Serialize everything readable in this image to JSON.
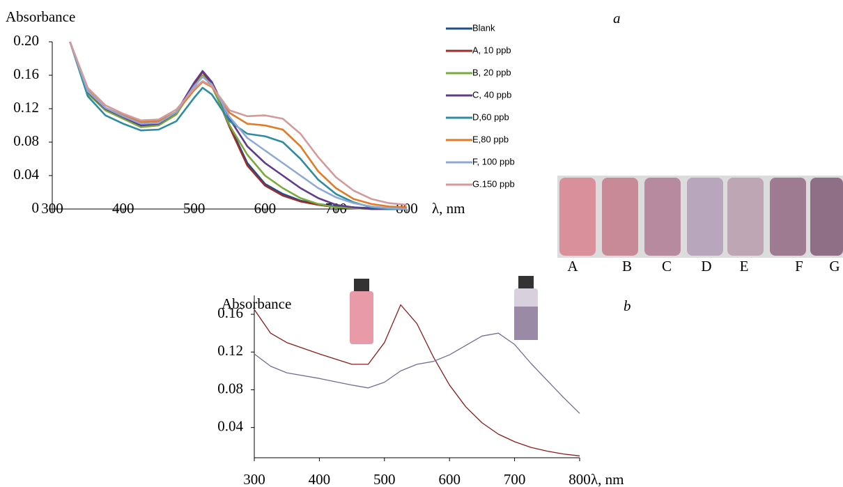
{
  "chart_data": [
    {
      "type": "line",
      "panel_label": "a",
      "y_label": "Absorbance",
      "x_label": "λ, nm",
      "x": [
        325,
        350,
        375,
        400,
        425,
        450,
        475,
        500,
        512,
        525,
        550,
        575,
        600,
        625,
        650,
        675,
        700,
        725,
        750,
        775,
        800
      ],
      "xlim": [
        300,
        800
      ],
      "xticks": [
        300,
        400,
        500,
        600,
        700,
        800
      ],
      "ylim": [
        0,
        0.2
      ],
      "yticks": [
        0,
        0.04,
        0.08,
        0.12,
        0.16,
        {
          "value": 0.2,
          "label": "0.20"
        }
      ],
      "series": [
        {
          "name": "Blank",
          "color": "#1f4e8c",
          "values": [
            0.2,
            0.14,
            0.12,
            0.11,
            0.1,
            0.102,
            0.115,
            0.15,
            0.165,
            0.15,
            0.1,
            0.055,
            0.03,
            0.018,
            0.01,
            0.006,
            0.003,
            0.002,
            0.001,
            0,
            0
          ]
        },
        {
          "name": "A, 10 ppb",
          "color": "#9b2d2d",
          "values": [
            0.2,
            0.139,
            0.119,
            0.109,
            0.099,
            0.101,
            0.114,
            0.149,
            0.164,
            0.149,
            0.098,
            0.052,
            0.028,
            0.016,
            0.009,
            0.005,
            0.002,
            0.001,
            0,
            0,
            0
          ]
        },
        {
          "name": "B, 20 ppb",
          "color": "#7aab3a",
          "values": [
            0.2,
            0.138,
            0.118,
            0.108,
            0.098,
            0.1,
            0.113,
            0.146,
            0.16,
            0.147,
            0.1,
            0.065,
            0.04,
            0.025,
            0.013,
            0.006,
            0.002,
            0.001,
            0,
            0,
            0
          ]
        },
        {
          "name": "C, 40 ppb",
          "color": "#5e3c8a",
          "values": [
            0.2,
            0.14,
            0.12,
            0.11,
            0.1,
            0.102,
            0.116,
            0.151,
            0.165,
            0.152,
            0.108,
            0.075,
            0.055,
            0.04,
            0.025,
            0.013,
            0.005,
            0.002,
            0,
            0,
            0
          ]
        },
        {
          "name": "D,60 ppb",
          "color": "#2e8ca0",
          "values": [
            0.2,
            0.135,
            0.112,
            0.102,
            0.094,
            0.095,
            0.105,
            0.133,
            0.145,
            0.137,
            0.105,
            0.09,
            0.087,
            0.08,
            0.06,
            0.035,
            0.018,
            0.008,
            0.002,
            0,
            0
          ]
        },
        {
          "name": "E,80 ppb",
          "color": "#e07b28",
          "values": [
            0.2,
            0.142,
            0.121,
            0.112,
            0.104,
            0.105,
            0.116,
            0.142,
            0.152,
            0.146,
            0.115,
            0.102,
            0.1,
            0.095,
            0.075,
            0.045,
            0.025,
            0.012,
            0.006,
            0.003,
            0.002
          ]
        },
        {
          "name": "F, 100 ppb",
          "color": "#8ea9d8",
          "values": [
            0.2,
            0.141,
            0.121,
            0.111,
            0.102,
            0.103,
            0.116,
            0.147,
            0.158,
            0.149,
            0.11,
            0.085,
            0.07,
            0.055,
            0.04,
            0.025,
            0.014,
            0.007,
            0.003,
            0.001,
            0
          ]
        },
        {
          "name": "G.150 ppb",
          "color": "#d49a9a",
          "values": [
            0.2,
            0.145,
            0.124,
            0.114,
            0.106,
            0.107,
            0.119,
            0.144,
            0.153,
            0.147,
            0.118,
            0.111,
            0.112,
            0.108,
            0.09,
            0.062,
            0.038,
            0.022,
            0.012,
            0.007,
            0.005
          ]
        }
      ]
    },
    {
      "type": "line",
      "panel_label": "b",
      "y_label": "Absorbance",
      "x_label": "λ, nm",
      "x": [
        300,
        325,
        350,
        400,
        450,
        475,
        500,
        525,
        550,
        575,
        600,
        625,
        650,
        675,
        700,
        725,
        750,
        775,
        800
      ],
      "xlim": [
        300,
        800
      ],
      "xticks": [
        300,
        400,
        500,
        600,
        700,
        800
      ],
      "ylim": [
        0.008,
        0.18
      ],
      "yticks": [
        0.04,
        0.08,
        0.12,
        0.16
      ],
      "series": [
        {
          "color": "#8b1a1a",
          "values": [
            0.165,
            0.14,
            0.13,
            0.118,
            0.107,
            0.107,
            0.13,
            0.17,
            0.15,
            0.115,
            0.085,
            0.062,
            0.045,
            0.033,
            0.025,
            0.019,
            0.015,
            0.012,
            0.01
          ]
        },
        {
          "color": "#6e6e94",
          "values": [
            0.118,
            0.105,
            0.098,
            0.092,
            0.085,
            0.082,
            0.088,
            0.1,
            0.107,
            0.11,
            0.117,
            0.127,
            0.137,
            0.14,
            0.128,
            0.108,
            0.09,
            0.072,
            0.055
          ]
        }
      ]
    }
  ],
  "photo": {
    "labels": [
      "A",
      "B",
      "C",
      "D",
      "E",
      "F",
      "G"
    ]
  }
}
